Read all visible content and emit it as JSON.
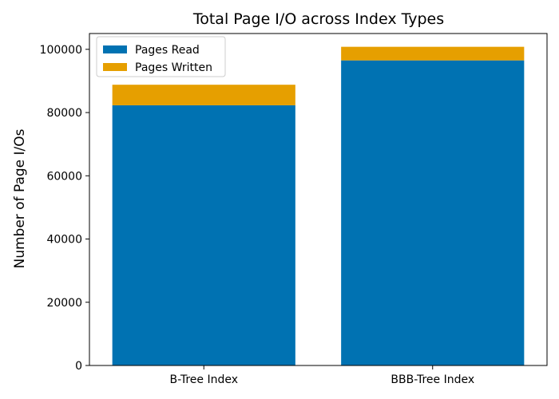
{
  "chart_data": {
    "type": "bar",
    "stacked": true,
    "title": "Total Page I/O across Index Types",
    "xlabel": "",
    "ylabel": "Number of Page I/Os",
    "categories": [
      "B-Tree Index",
      "BBB-Tree Index"
    ],
    "series": [
      {
        "name": "Pages Read",
        "values": [
          82300,
          96500
        ],
        "color": "#0072b2"
      },
      {
        "name": "Pages Written",
        "values": [
          6500,
          4300
        ],
        "color": "#e69f00"
      }
    ],
    "ylim": [
      0,
      105000
    ],
    "yticks": [
      0,
      20000,
      40000,
      60000,
      80000,
      100000
    ],
    "ytick_labels": [
      "0",
      "20000",
      "40000",
      "60000",
      "80000",
      "100000"
    ],
    "grid": false,
    "legend_position": "top-left"
  }
}
